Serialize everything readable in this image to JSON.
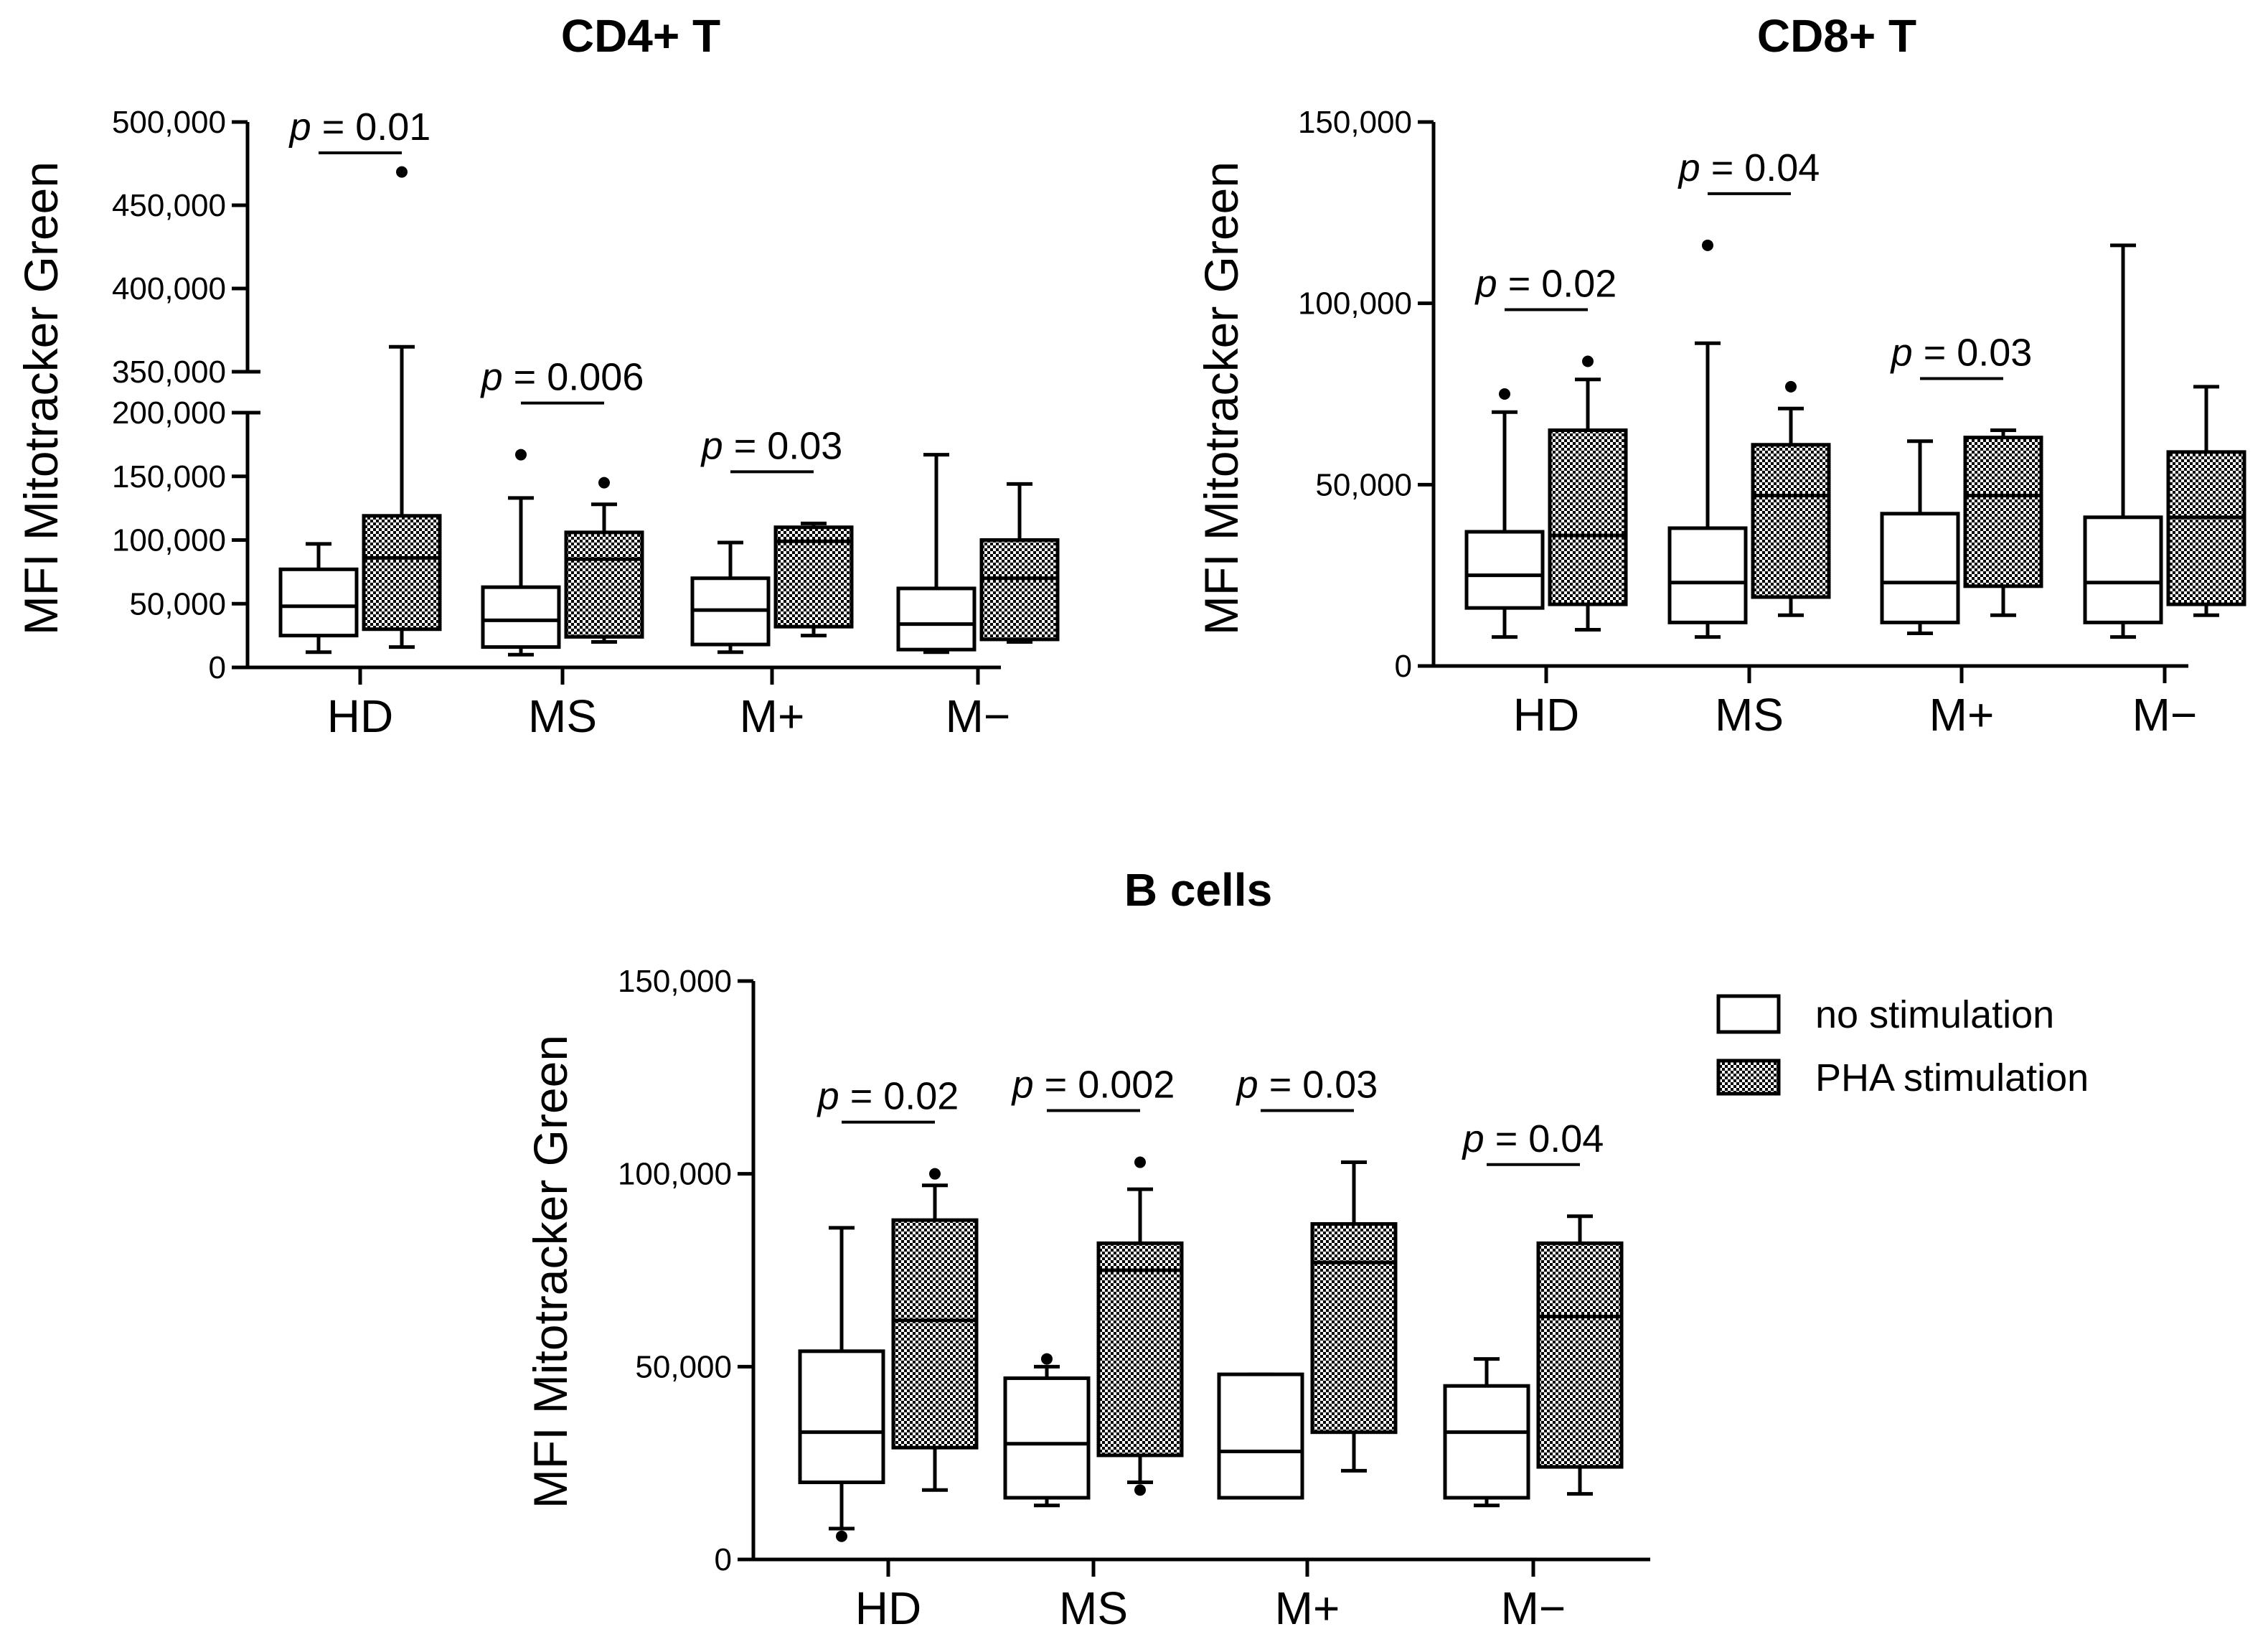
{
  "legend": [
    {
      "label": "no stimulation",
      "pattern": "none"
    },
    {
      "label": "PHA stimulation",
      "pattern": "checker"
    }
  ],
  "chart_data": [
    {
      "type": "box",
      "title": "CD4+ T",
      "ylabel": "MFI Mitotracker Green",
      "categories": [
        "HD",
        "MS",
        "M+",
        "M−"
      ],
      "ylim": [
        0,
        500000
      ],
      "axis_break": [
        200000,
        350000
      ],
      "yticks": [
        {
          "value": 0,
          "label": "0"
        },
        {
          "value": 50000,
          "label": "50,000"
        },
        {
          "value": 100000,
          "label": "100,000"
        },
        {
          "value": 150000,
          "label": "150,000"
        },
        {
          "value": 200000,
          "label": "200,000"
        },
        {
          "value": 350000,
          "label": "350,000"
        },
        {
          "value": 400000,
          "label": "400,000"
        },
        {
          "value": 450000,
          "label": "450,000"
        },
        {
          "value": 500000,
          "label": "500,000"
        }
      ],
      "series": [
        {
          "name": "no stimulation",
          "boxes": [
            {
              "min": 12000,
              "q1": 25000,
              "median": 48000,
              "q3": 77000,
              "max": 97000,
              "outliers": []
            },
            {
              "min": 10000,
              "q1": 16000,
              "median": 37000,
              "q3": 63000,
              "max": 133000,
              "outliers": [
                167000
              ]
            },
            {
              "min": 12000,
              "q1": 18000,
              "median": 45000,
              "q3": 70000,
              "max": 98000,
              "outliers": []
            },
            {
              "min": 12000,
              "q1": 14000,
              "median": 34000,
              "q3": 62000,
              "max": 167000,
              "outliers": []
            }
          ]
        },
        {
          "name": "PHA stimulation",
          "boxes": [
            {
              "min": 16000,
              "q1": 30000,
              "median": 86000,
              "q3": 119000,
              "max": 365000,
              "outliers": [
                470000
              ]
            },
            {
              "min": 20000,
              "q1": 24000,
              "median": 85000,
              "q3": 106000,
              "max": 128000,
              "outliers": [
                145000
              ]
            },
            {
              "min": 25000,
              "q1": 32000,
              "median": 99000,
              "q3": 110000,
              "max": 113000,
              "outliers": []
            },
            {
              "min": 20000,
              "q1": 22000,
              "median": 70000,
              "q3": 100000,
              "max": 144000,
              "outliers": []
            }
          ]
        }
      ],
      "annotations": [
        {
          "category": "HD",
          "p": "p",
          "text": " = 0.01"
        },
        {
          "category": "MS",
          "p": "p",
          "text": " = 0.006"
        },
        {
          "category": "M+",
          "p": "p",
          "text": " = 0.03"
        }
      ]
    },
    {
      "type": "box",
      "title": "CD8+ T",
      "ylabel": "MFI Mitotracker Green",
      "categories": [
        "HD",
        "MS",
        "M+",
        "M−"
      ],
      "ylim": [
        0,
        150000
      ],
      "yticks": [
        {
          "value": 0,
          "label": "0"
        },
        {
          "value": 50000,
          "label": "50,000"
        },
        {
          "value": 100000,
          "label": "100,000"
        },
        {
          "value": 150000,
          "label": "150,000"
        }
      ],
      "series": [
        {
          "name": "no stimulation",
          "boxes": [
            {
              "min": 8000,
              "q1": 16000,
              "median": 25000,
              "q3": 37000,
              "max": 70000,
              "outliers": [
                75000
              ]
            },
            {
              "min": 8000,
              "q1": 12000,
              "median": 23000,
              "q3": 38000,
              "max": 89000,
              "outliers": [
                116000
              ]
            },
            {
              "min": 9000,
              "q1": 12000,
              "median": 23000,
              "q3": 42000,
              "max": 62000,
              "outliers": []
            },
            {
              "min": 8000,
              "q1": 12000,
              "median": 23000,
              "q3": 41000,
              "max": 116000,
              "outliers": []
            }
          ]
        },
        {
          "name": "PHA stimulation",
          "boxes": [
            {
              "min": 10000,
              "q1": 17000,
              "median": 36000,
              "q3": 65000,
              "max": 79000,
              "outliers": [
                84000
              ]
            },
            {
              "min": 14000,
              "q1": 19000,
              "median": 47000,
              "q3": 61000,
              "max": 71000,
              "outliers": [
                77000
              ]
            },
            {
              "min": 14000,
              "q1": 22000,
              "median": 47000,
              "q3": 63000,
              "max": 65000,
              "outliers": []
            },
            {
              "min": 14000,
              "q1": 17000,
              "median": 41000,
              "q3": 59000,
              "max": 77000,
              "outliers": []
            }
          ]
        }
      ],
      "annotations": [
        {
          "category": "HD",
          "p": "p",
          "text": " = 0.02"
        },
        {
          "category": "MS",
          "p": "p",
          "text": " = 0.04"
        },
        {
          "category": "M+",
          "p": "p",
          "text": " = 0.03"
        }
      ]
    },
    {
      "type": "box",
      "title": "B cells",
      "ylabel": "MFI Mitotracker Green",
      "categories": [
        "HD",
        "MS",
        "M+",
        "M−"
      ],
      "ylim": [
        0,
        150000
      ],
      "yticks": [
        {
          "value": 0,
          "label": "0"
        },
        {
          "value": 50000,
          "label": "50,000"
        },
        {
          "value": 100000,
          "label": "100,000"
        },
        {
          "value": 150000,
          "label": "150,000"
        }
      ],
      "series": [
        {
          "name": "no stimulation",
          "boxes": [
            {
              "min": 8000,
              "q1": 20000,
              "median": 33000,
              "q3": 54000,
              "max": 86000,
              "outliers": [
                6000
              ]
            },
            {
              "min": 14000,
              "q1": 16000,
              "median": 30000,
              "q3": 47000,
              "max": 50000,
              "outliers": [
                52000
              ]
            },
            {
              "min": 16000,
              "q1": 16000,
              "median": 28000,
              "q3": 48000,
              "max": 48000,
              "outliers": []
            },
            {
              "min": 14000,
              "q1": 16000,
              "median": 33000,
              "q3": 45000,
              "max": 52000,
              "outliers": []
            }
          ]
        },
        {
          "name": "PHA stimulation",
          "boxes": [
            {
              "min": 18000,
              "q1": 29000,
              "median": 62000,
              "q3": 88000,
              "max": 97000,
              "outliers": [
                100000
              ]
            },
            {
              "min": 20000,
              "q1": 27000,
              "median": 75000,
              "q3": 82000,
              "max": 96000,
              "outliers": [
                18000,
                103000
              ]
            },
            {
              "min": 23000,
              "q1": 33000,
              "median": 77000,
              "q3": 87000,
              "max": 103000,
              "outliers": []
            },
            {
              "min": 17000,
              "q1": 24000,
              "median": 63000,
              "q3": 82000,
              "max": 89000,
              "outliers": []
            }
          ]
        }
      ],
      "annotations": [
        {
          "category": "HD",
          "p": "p",
          "text": " = 0.02"
        },
        {
          "category": "MS",
          "p": "p",
          "text": " = 0.002"
        },
        {
          "category": "M+",
          "p": "p",
          "text": " = 0.03"
        },
        {
          "category": "M−",
          "p": "p",
          "text": " = 0.04"
        }
      ]
    }
  ]
}
